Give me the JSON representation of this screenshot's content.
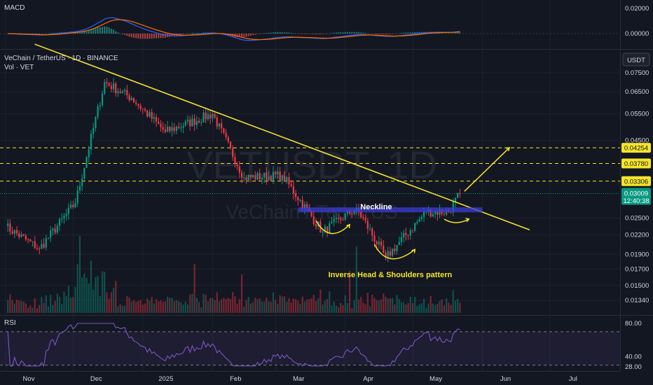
{
  "header": {
    "pair": "VeChain / TetherUS · 1D · BINANCE",
    "volume_label": "Vol · VET",
    "watermark_ticker": "VETUSDT, 1D",
    "watermark_name": "VeChain / TetherUS",
    "currency_button": "USDT"
  },
  "macd_panel": {
    "label": "MACD",
    "ticks": [
      "0.02000",
      "0.00000"
    ]
  },
  "rsi_panel": {
    "label": "RSI",
    "ticks": [
      "80.00",
      "40.00",
      "28.00"
    ],
    "levels": [
      70,
      30
    ]
  },
  "price_axis": {
    "ticks": [
      "0.07500",
      "0.06500",
      "0.05500",
      "0.04500",
      "0.02500",
      "0.02200",
      "0.01900",
      "0.01700",
      "0.01500",
      "0.01340"
    ],
    "tick_values": [
      0.075,
      0.065,
      0.055,
      0.045,
      0.025,
      0.022,
      0.019,
      0.017,
      0.015,
      0.0134
    ],
    "levels": [
      {
        "label": "0.04254",
        "value": 0.04254,
        "color": "#f5e42a"
      },
      {
        "label": "0.03780",
        "value": 0.0378,
        "color": "#f5e42a"
      },
      {
        "label": "0.03306",
        "value": 0.03306,
        "color": "#f5e42a"
      }
    ],
    "current_price": {
      "label": "0.03009",
      "value": 0.03009,
      "countdown": "12:40:38",
      "color": "#089981"
    }
  },
  "time_axis": {
    "labels": [
      {
        "text": "Nov",
        "bar": 0
      },
      {
        "text": "Dec",
        "bar": 30
      },
      {
        "text": "2025",
        "bar": 61
      },
      {
        "text": "Feb",
        "bar": 92
      },
      {
        "text": "Mar",
        "bar": 120
      },
      {
        "text": "Apr",
        "bar": 151
      },
      {
        "text": "May",
        "bar": 181
      },
      {
        "text": "Jun",
        "bar": 212
      },
      {
        "text": "Jul",
        "bar": 242
      }
    ]
  },
  "annotations": {
    "neckline_label": "Neckline",
    "pattern_label": "Inverse Head & Shoulders pattern"
  },
  "colors": {
    "up": "#089981",
    "down": "#f23645",
    "trendline": "#f5e42a",
    "neckline": "#3d3dd6",
    "rsi": "#7e57c2",
    "macd": "#2962ff",
    "signal": "#ff6d00"
  },
  "chart_data": {
    "type": "candlestick",
    "symbol": "VeChain / TetherUS",
    "timeframe": "1D",
    "exchange": "BINANCE",
    "scale": "log",
    "x_range": [
      "2024-10-20",
      "2025-07-15"
    ],
    "key_points": [
      {
        "date": "2024-10-20",
        "close": 0.0235
      },
      {
        "date": "2024-11-04",
        "close": 0.0198
      },
      {
        "date": "2024-11-20",
        "close": 0.028
      },
      {
        "date": "2024-12-03",
        "close": 0.07
      },
      {
        "date": "2024-12-15",
        "close": 0.062
      },
      {
        "date": "2024-12-30",
        "close": 0.048
      },
      {
        "date": "2025-01-20",
        "close": 0.055
      },
      {
        "date": "2025-02-03",
        "close": 0.034
      },
      {
        "date": "2025-02-20",
        "close": 0.0345
      },
      {
        "date": "2025-03-10",
        "close": 0.0225
      },
      {
        "date": "2025-03-25",
        "close": 0.027
      },
      {
        "date": "2025-04-07",
        "close": 0.0185
      },
      {
        "date": "2025-04-25",
        "close": 0.0262
      },
      {
        "date": "2025-05-05",
        "close": 0.0262
      },
      {
        "date": "2025-05-10",
        "close": 0.0301
      }
    ],
    "horizontal_levels": [
      0.04254,
      0.0378,
      0.03306
    ],
    "current_price": 0.03009,
    "neckline": 0.0266,
    "trendline": {
      "from": {
        "date": "2024-11-20",
        "price": 0.083
      },
      "to": {
        "date": "2025-06-10",
        "price": 0.0225
      }
    }
  }
}
